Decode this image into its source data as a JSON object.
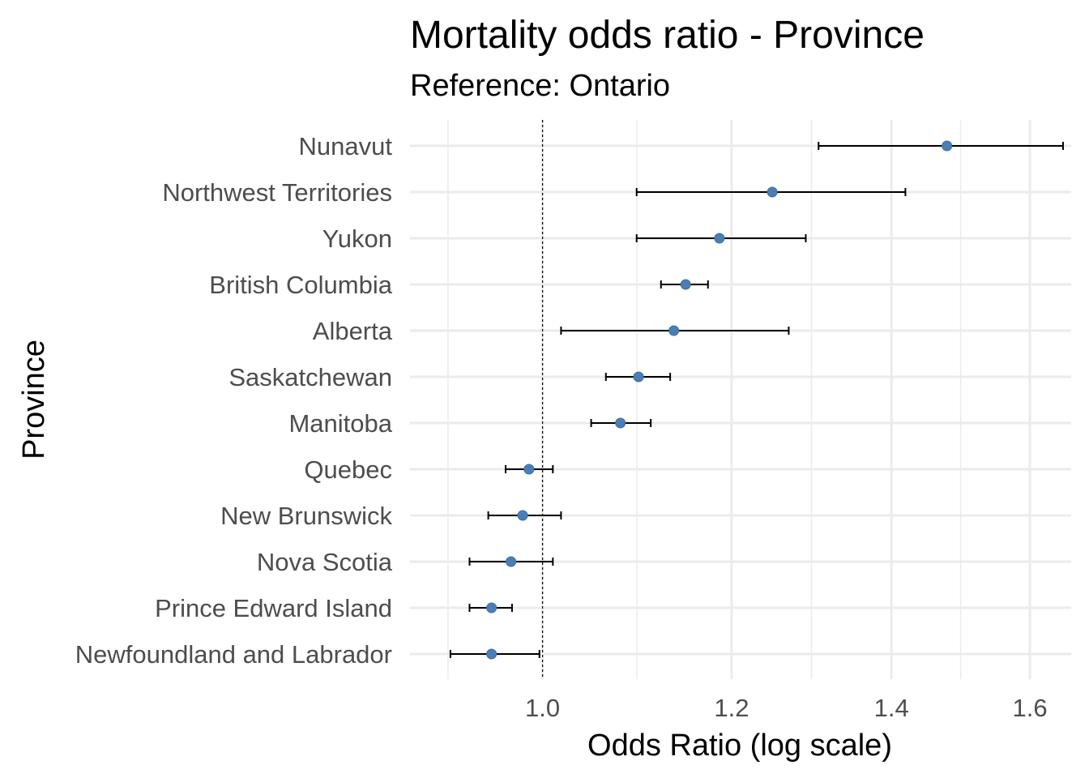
{
  "chart_data": {
    "type": "scatter",
    "title": "Mortality odds ratio - Province",
    "subtitle": "Reference: Ontario",
    "xlabel": "Odds Ratio (log scale)",
    "ylabel": "Province",
    "x_scale": "log",
    "xlim": [
      0.88,
      1.665
    ],
    "x_ticks": [
      1.0,
      1.2,
      1.4,
      1.6
    ],
    "x_tick_labels": [
      "1.0",
      "1.2",
      "1.4",
      "1.6"
    ],
    "reference_line": 1.0,
    "grid": true,
    "point_color": "#4a7fb5",
    "categories": [
      "Nunavut",
      "Northwest Territories",
      "Yukon",
      "British Columbia",
      "Alberta",
      "Saskatchewan",
      "Manitoba",
      "Quebec",
      "New Brunswick",
      "Nova Scotia",
      "Prince Edward Island",
      "Newfoundland and Labrador"
    ],
    "values": [
      1.477,
      1.248,
      1.186,
      1.148,
      1.135,
      1.097,
      1.078,
      0.987,
      0.981,
      0.97,
      0.952,
      0.952
    ],
    "ci_low": [
      1.305,
      1.095,
      1.095,
      1.121,
      1.018,
      1.063,
      1.048,
      0.965,
      0.949,
      0.932,
      0.932,
      0.915
    ],
    "ci_high": [
      1.652,
      1.419,
      1.289,
      1.173,
      1.268,
      1.131,
      1.11,
      1.01,
      1.018,
      1.01,
      0.971,
      0.997
    ]
  }
}
